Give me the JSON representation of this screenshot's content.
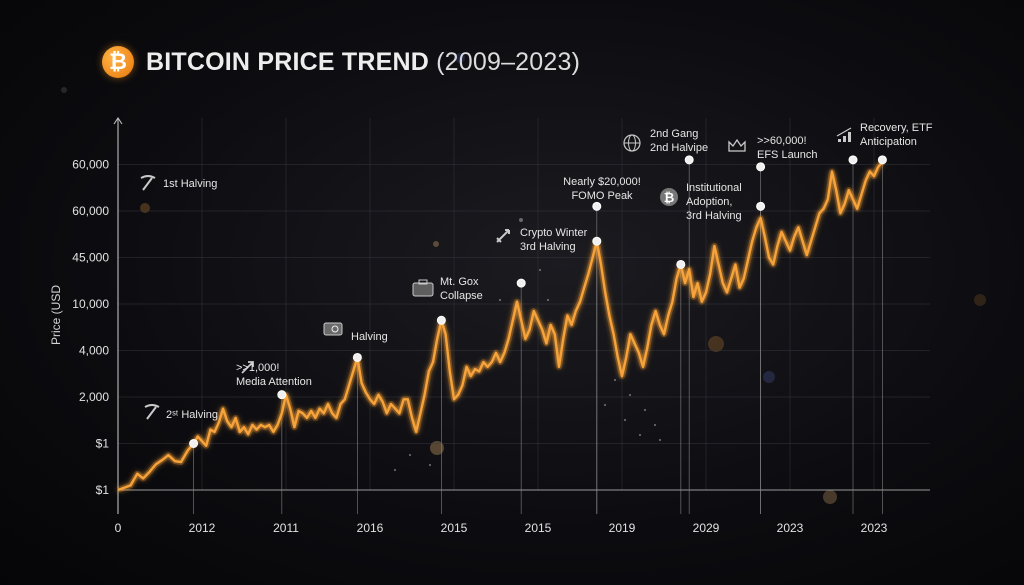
{
  "header": {
    "title_main": "BITCOIN PRICE TREND",
    "title_range": "(2009–2023)",
    "logo_glyph": "₿"
  },
  "colors": {
    "line": "#f7a33a",
    "line_glow": "#ff9a1f",
    "grid": "#3a3a42",
    "logo": "#f7931a"
  },
  "chart_data": {
    "type": "line",
    "title": "BITCOIN PRICE TREND (2009–2023)",
    "xlabel": "",
    "ylabel": "Price (USD",
    "grid": true,
    "x_ticks": [
      "0",
      "2012",
      "2011",
      "2016",
      "2015",
      "2015",
      "2019",
      "2029",
      "2023",
      "2023"
    ],
    "y_ticks": [
      "$1",
      "$1",
      "2,000",
      "4,000",
      "10,000",
      "45,000",
      "60,000",
      "60,000"
    ],
    "ylim_levels": [
      0,
      8.5
    ],
    "series": [
      {
        "name": "",
        "points": [
          [
            0.0,
            0.0
          ],
          [
            0.15,
            0.1
          ],
          [
            0.23,
            0.35
          ],
          [
            0.3,
            0.25
          ],
          [
            0.38,
            0.4
          ],
          [
            0.45,
            0.55
          ],
          [
            0.53,
            0.65
          ],
          [
            0.6,
            0.75
          ],
          [
            0.68,
            0.62
          ],
          [
            0.75,
            0.6
          ],
          [
            0.83,
            0.85
          ],
          [
            0.9,
            1.0
          ],
          [
            0.95,
            1.15
          ],
          [
            1.0,
            1.05
          ],
          [
            1.05,
            0.95
          ],
          [
            1.1,
            1.3
          ],
          [
            1.15,
            1.25
          ],
          [
            1.2,
            1.45
          ],
          [
            1.25,
            1.75
          ],
          [
            1.3,
            1.48
          ],
          [
            1.35,
            1.35
          ],
          [
            1.4,
            1.55
          ],
          [
            1.45,
            1.25
          ],
          [
            1.5,
            1.35
          ],
          [
            1.55,
            1.2
          ],
          [
            1.6,
            1.4
          ],
          [
            1.65,
            1.3
          ],
          [
            1.7,
            1.4
          ],
          [
            1.75,
            1.35
          ],
          [
            1.8,
            1.4
          ],
          [
            1.85,
            1.25
          ],
          [
            1.9,
            1.4
          ],
          [
            1.95,
            1.65
          ],
          [
            2.0,
            2.05
          ],
          [
            2.05,
            1.75
          ],
          [
            2.1,
            1.35
          ],
          [
            2.15,
            1.7
          ],
          [
            2.2,
            1.65
          ],
          [
            2.25,
            1.55
          ],
          [
            2.3,
            1.7
          ],
          [
            2.35,
            1.55
          ],
          [
            2.4,
            1.75
          ],
          [
            2.45,
            1.65
          ],
          [
            2.5,
            1.85
          ],
          [
            2.55,
            1.65
          ],
          [
            2.6,
            1.55
          ],
          [
            2.65,
            1.85
          ],
          [
            2.7,
            1.95
          ],
          [
            2.75,
            2.25
          ],
          [
            2.8,
            2.55
          ],
          [
            2.85,
            2.85
          ],
          [
            2.9,
            2.3
          ],
          [
            2.95,
            2.1
          ],
          [
            3.0,
            1.95
          ],
          [
            3.05,
            1.85
          ],
          [
            3.1,
            2.05
          ],
          [
            3.15,
            1.9
          ],
          [
            3.2,
            1.65
          ],
          [
            3.25,
            1.85
          ],
          [
            3.3,
            1.75
          ],
          [
            3.35,
            1.65
          ],
          [
            3.4,
            1.95
          ],
          [
            3.45,
            1.95
          ],
          [
            3.5,
            1.55
          ],
          [
            3.55,
            1.25
          ],
          [
            3.6,
            1.65
          ],
          [
            3.65,
            2.05
          ],
          [
            3.7,
            2.55
          ],
          [
            3.75,
            2.75
          ],
          [
            3.8,
            3.25
          ],
          [
            3.85,
            3.65
          ],
          [
            3.9,
            3.35
          ],
          [
            3.95,
            2.55
          ],
          [
            4.0,
            1.95
          ],
          [
            4.05,
            2.05
          ],
          [
            4.1,
            2.25
          ],
          [
            4.15,
            2.65
          ],
          [
            4.2,
            2.45
          ],
          [
            4.25,
            2.6
          ],
          [
            4.3,
            2.55
          ],
          [
            4.35,
            2.75
          ],
          [
            4.4,
            2.65
          ],
          [
            4.45,
            2.75
          ],
          [
            4.5,
            2.95
          ],
          [
            4.55,
            2.75
          ],
          [
            4.6,
            2.95
          ],
          [
            4.65,
            3.25
          ],
          [
            4.7,
            3.65
          ],
          [
            4.75,
            4.05
          ],
          [
            4.8,
            3.65
          ],
          [
            4.85,
            3.25
          ],
          [
            4.9,
            3.45
          ],
          [
            4.95,
            3.85
          ],
          [
            5.0,
            3.65
          ],
          [
            5.05,
            3.45
          ],
          [
            5.1,
            3.15
          ],
          [
            5.15,
            3.55
          ],
          [
            5.2,
            3.35
          ],
          [
            5.25,
            2.65
          ],
          [
            5.3,
            3.25
          ],
          [
            5.35,
            3.75
          ],
          [
            5.4,
            3.55
          ],
          [
            5.45,
            3.85
          ],
          [
            5.5,
            4.05
          ],
          [
            5.55,
            4.35
          ],
          [
            5.6,
            4.65
          ],
          [
            5.65,
            5.0
          ],
          [
            5.7,
            5.35
          ],
          [
            5.75,
            4.85
          ],
          [
            5.8,
            4.25
          ],
          [
            5.85,
            3.75
          ],
          [
            5.9,
            3.35
          ],
          [
            5.95,
            2.85
          ],
          [
            6.0,
            2.45
          ],
          [
            6.05,
            2.85
          ],
          [
            6.1,
            3.35
          ],
          [
            6.15,
            3.15
          ],
          [
            6.2,
            2.95
          ],
          [
            6.25,
            2.65
          ],
          [
            6.3,
            3.05
          ],
          [
            6.35,
            3.55
          ],
          [
            6.4,
            3.85
          ],
          [
            6.45,
            3.55
          ],
          [
            6.5,
            3.35
          ],
          [
            6.55,
            3.75
          ],
          [
            6.6,
            4.05
          ],
          [
            6.65,
            4.55
          ],
          [
            6.7,
            4.85
          ],
          [
            6.75,
            4.45
          ],
          [
            6.8,
            4.75
          ],
          [
            6.85,
            4.15
          ],
          [
            6.9,
            4.45
          ],
          [
            6.95,
            4.05
          ],
          [
            7.0,
            4.25
          ],
          [
            7.05,
            4.65
          ],
          [
            7.1,
            5.25
          ],
          [
            7.15,
            4.85
          ],
          [
            7.2,
            4.45
          ],
          [
            7.25,
            4.25
          ],
          [
            7.3,
            4.55
          ],
          [
            7.35,
            4.85
          ],
          [
            7.4,
            4.35
          ],
          [
            7.45,
            4.55
          ],
          [
            7.5,
            4.95
          ],
          [
            7.55,
            5.35
          ],
          [
            7.6,
            5.65
          ],
          [
            7.65,
            5.85
          ],
          [
            7.7,
            5.45
          ],
          [
            7.75,
            5.0
          ],
          [
            7.8,
            4.85
          ],
          [
            7.85,
            5.25
          ],
          [
            7.9,
            5.55
          ],
          [
            7.95,
            5.35
          ],
          [
            8.0,
            5.15
          ],
          [
            8.05,
            5.45
          ],
          [
            8.1,
            5.65
          ],
          [
            8.15,
            5.35
          ],
          [
            8.2,
            5.05
          ],
          [
            8.25,
            5.35
          ],
          [
            8.3,
            5.65
          ],
          [
            8.35,
            5.95
          ],
          [
            8.4,
            6.05
          ],
          [
            8.45,
            6.25
          ],
          [
            8.5,
            6.85
          ],
          [
            8.55,
            6.45
          ],
          [
            8.6,
            5.95
          ],
          [
            8.65,
            6.15
          ],
          [
            8.7,
            6.45
          ],
          [
            8.75,
            6.25
          ],
          [
            8.8,
            6.05
          ],
          [
            8.85,
            6.35
          ],
          [
            8.9,
            6.65
          ],
          [
            8.95,
            6.85
          ],
          [
            9.0,
            6.75
          ],
          [
            9.05,
            6.95
          ],
          [
            9.1,
            7.05
          ]
        ]
      }
    ],
    "annotations": [
      {
        "x": 0.9,
        "y": 1.0,
        "text": [
          "2ˢᵗ Halving"
        ],
        "icon": "pickaxe-icon"
      },
      {
        "x": 1.95,
        "y": 2.05,
        "text": [
          ">>1,000!",
          "Media Attention"
        ],
        "icon": "trend-arrow-icon"
      },
      {
        "x": 2.85,
        "y": 2.85,
        "text": [
          "Halving"
        ],
        "icon": "chip-icon"
      },
      {
        "x": 3.85,
        "y": 3.65,
        "text": [
          "Mt. Gox",
          "Collapse"
        ],
        "icon": "briefcase-icon"
      },
      {
        "x": 4.8,
        "y": 4.45,
        "text": [
          "Crypto Winter",
          "3rd Halving"
        ],
        "icon": "rocket-icon"
      },
      {
        "x": 5.7,
        "y": 5.35,
        "text": [
          "FOMO Peak"
        ],
        "icon": ""
      },
      {
        "x": 5.7,
        "y": 6.1,
        "text": [
          "Nearly $20,000!"
        ],
        "icon": ""
      },
      {
        "x": 6.7,
        "y": 4.85,
        "text": [
          "Institutional",
          "Adoption,",
          "3rd Halving"
        ],
        "icon": "bitcoin-mark-icon"
      },
      {
        "x": 6.8,
        "y": 7.1,
        "text": [
          "2nd Gang",
          "2nd Halvipe"
        ],
        "icon": "globe-icon"
      },
      {
        "x": 7.65,
        "y": 6.1,
        "text": [],
        "icon": ""
      },
      {
        "x": 7.65,
        "y": 6.95,
        "text": [
          ">>60,000!",
          "EFS Launch"
        ],
        "icon": "crown-icon"
      },
      {
        "x": 8.75,
        "y": 7.1,
        "text": [
          "Recovery, ETF",
          "Anticipation"
        ],
        "icon": "bar-chart-icon"
      },
      {
        "x": 9.1,
        "y": 7.1,
        "text": [],
        "icon": ""
      }
    ],
    "top_left_annotation": {
      "text": "1st Halving",
      "icon": "pickaxe-icon"
    }
  }
}
